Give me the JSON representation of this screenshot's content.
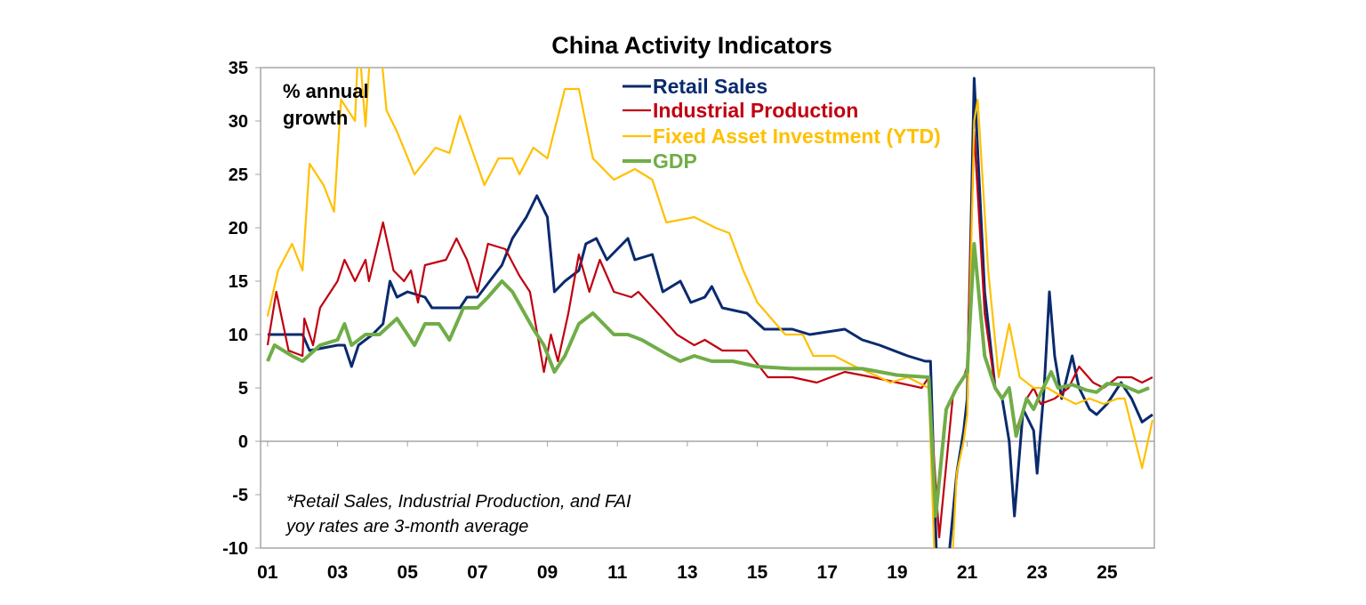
{
  "chart_data": {
    "type": "line",
    "title": "China Activity Indicators",
    "ylabel": "% annual growth",
    "ylim": [
      -10,
      35
    ],
    "xlim": [
      2000.8,
      2026.35
    ],
    "yticks": [
      -10,
      -5,
      0,
      5,
      10,
      15,
      20,
      25,
      30,
      35
    ],
    "xtick_labels": [
      "01",
      "03",
      "05",
      "07",
      "09",
      "11",
      "13",
      "15",
      "17",
      "19",
      "21",
      "23",
      "25"
    ],
    "xtick_years": [
      2001,
      2003,
      2005,
      2007,
      2009,
      2011,
      2013,
      2015,
      2017,
      2019,
      2021,
      2023,
      2025
    ],
    "grid": false,
    "legend_placement": "top-center",
    "footnote": [
      "*Retail Sales, Industrial Production, and FAI",
      "yoy rates are 3-month average"
    ],
    "series": [
      {
        "name": "Retail Sales",
        "color": "#0a2a6e",
        "width": 3,
        "points": [
          [
            2001.0,
            10
          ],
          [
            2001.5,
            10
          ],
          [
            2002.0,
            10
          ],
          [
            2002.2,
            8.5
          ],
          [
            2003.0,
            9
          ],
          [
            2003.2,
            9
          ],
          [
            2003.4,
            7
          ],
          [
            2003.6,
            9
          ],
          [
            2004.0,
            10
          ],
          [
            2004.3,
            11
          ],
          [
            2004.5,
            15
          ],
          [
            2004.7,
            13.5
          ],
          [
            2005.0,
            14
          ],
          [
            2005.5,
            13.5
          ],
          [
            2005.7,
            12.5
          ],
          [
            2006.5,
            12.5
          ],
          [
            2006.7,
            13.5
          ],
          [
            2007.0,
            13.5
          ],
          [
            2007.7,
            16.5
          ],
          [
            2008.0,
            19
          ],
          [
            2008.4,
            21
          ],
          [
            2008.7,
            23
          ],
          [
            2009.0,
            21
          ],
          [
            2009.2,
            14
          ],
          [
            2009.5,
            15
          ],
          [
            2009.9,
            16
          ],
          [
            2010.1,
            18.5
          ],
          [
            2010.4,
            19
          ],
          [
            2010.7,
            17
          ],
          [
            2011.0,
            18
          ],
          [
            2011.3,
            19
          ],
          [
            2011.5,
            17
          ],
          [
            2012.0,
            17.5
          ],
          [
            2012.3,
            14
          ],
          [
            2012.8,
            15
          ],
          [
            2013.1,
            13
          ],
          [
            2013.5,
            13.5
          ],
          [
            2013.7,
            14.5
          ],
          [
            2014.0,
            12.5
          ],
          [
            2014.7,
            12
          ],
          [
            2015.2,
            10.5
          ],
          [
            2016.0,
            10.5
          ],
          [
            2016.5,
            10
          ],
          [
            2017.5,
            10.5
          ],
          [
            2018.0,
            9.5
          ],
          [
            2018.5,
            9
          ],
          [
            2019.3,
            8
          ],
          [
            2019.8,
            7.5
          ],
          [
            2019.95,
            7.5
          ],
          [
            2020.2,
            -19
          ],
          [
            2020.5,
            -10
          ],
          [
            2020.7,
            -3
          ],
          [
            2020.9,
            1
          ],
          [
            2021.0,
            4
          ],
          [
            2021.2,
            34
          ],
          [
            2021.5,
            14
          ],
          [
            2021.8,
            5
          ],
          [
            2022.0,
            4
          ],
          [
            2022.2,
            0
          ],
          [
            2022.35,
            -7
          ],
          [
            2022.6,
            3
          ],
          [
            2022.9,
            1
          ],
          [
            2023.0,
            -3
          ],
          [
            2023.2,
            5
          ],
          [
            2023.35,
            14
          ],
          [
            2023.5,
            8
          ],
          [
            2023.7,
            4
          ],
          [
            2024.0,
            8
          ],
          [
            2024.2,
            5
          ],
          [
            2024.5,
            3
          ],
          [
            2024.7,
            2.5
          ],
          [
            2025.0,
            3.5
          ],
          [
            2025.4,
            5.5
          ],
          [
            2025.7,
            4
          ],
          [
            2026.0,
            1.8
          ],
          [
            2026.3,
            2.5
          ]
        ]
      },
      {
        "name": "Industrial Production",
        "color": "#c00010",
        "width": 2.2,
        "points": [
          [
            2001.0,
            9
          ],
          [
            2001.25,
            14
          ],
          [
            2001.6,
            8.5
          ],
          [
            2002.0,
            8
          ],
          [
            2002.05,
            11.5
          ],
          [
            2002.3,
            9
          ],
          [
            2002.5,
            12.5
          ],
          [
            2003.0,
            15
          ],
          [
            2003.2,
            17
          ],
          [
            2003.5,
            15
          ],
          [
            2003.8,
            17
          ],
          [
            2003.9,
            15
          ],
          [
            2004.3,
            20.5
          ],
          [
            2004.6,
            16
          ],
          [
            2004.9,
            15
          ],
          [
            2005.1,
            16
          ],
          [
            2005.3,
            13
          ],
          [
            2005.5,
            16.5
          ],
          [
            2006.1,
            17
          ],
          [
            2006.4,
            19
          ],
          [
            2006.7,
            17
          ],
          [
            2007.0,
            14
          ],
          [
            2007.3,
            18.5
          ],
          [
            2007.8,
            18
          ],
          [
            2008.2,
            15.5
          ],
          [
            2008.5,
            14
          ],
          [
            2008.9,
            6.5
          ],
          [
            2009.1,
            10
          ],
          [
            2009.3,
            7.5
          ],
          [
            2009.6,
            12
          ],
          [
            2009.9,
            17.5
          ],
          [
            2010.2,
            14
          ],
          [
            2010.5,
            17
          ],
          [
            2010.9,
            14
          ],
          [
            2011.4,
            13.5
          ],
          [
            2011.6,
            14
          ],
          [
            2012.3,
            11.5
          ],
          [
            2012.7,
            10
          ],
          [
            2013.2,
            9
          ],
          [
            2013.5,
            9.5
          ],
          [
            2014.0,
            8.5
          ],
          [
            2014.7,
            8.5
          ],
          [
            2015.3,
            6
          ],
          [
            2016.0,
            6
          ],
          [
            2016.7,
            5.5
          ],
          [
            2017.5,
            6.5
          ],
          [
            2018.3,
            6
          ],
          [
            2019.0,
            5.5
          ],
          [
            2019.7,
            5
          ],
          [
            2019.9,
            6
          ],
          [
            2020.2,
            -9
          ],
          [
            2020.6,
            4.5
          ],
          [
            2020.9,
            6
          ],
          [
            2021.0,
            7
          ],
          [
            2021.2,
            29
          ],
          [
            2021.5,
            12
          ],
          [
            2021.8,
            5
          ],
          [
            2022.0,
            4
          ],
          [
            2022.2,
            5
          ],
          [
            2022.4,
            1
          ],
          [
            2022.7,
            4
          ],
          [
            2022.9,
            5
          ],
          [
            2023.1,
            3.5
          ],
          [
            2023.5,
            4
          ],
          [
            2023.9,
            5
          ],
          [
            2024.2,
            7
          ],
          [
            2024.6,
            5.5
          ],
          [
            2024.9,
            5
          ],
          [
            2025.3,
            6
          ],
          [
            2025.7,
            6
          ],
          [
            2026.0,
            5.5
          ],
          [
            2026.3,
            6
          ]
        ]
      },
      {
        "name": "Fixed Asset Investment (YTD)",
        "color": "#ffc000",
        "width": 2.2,
        "points": [
          [
            2001.0,
            11.7
          ],
          [
            2001.3,
            16
          ],
          [
            2001.7,
            18.5
          ],
          [
            2002.0,
            16
          ],
          [
            2002.2,
            26
          ],
          [
            2002.6,
            24
          ],
          [
            2002.9,
            21.5
          ],
          [
            2003.1,
            32
          ],
          [
            2003.5,
            30
          ],
          [
            2003.6,
            38
          ],
          [
            2003.8,
            29.5
          ],
          [
            2004.0,
            40
          ],
          [
            2004.2,
            38
          ],
          [
            2004.4,
            31
          ],
          [
            2004.7,
            29
          ],
          [
            2005.2,
            25
          ],
          [
            2005.8,
            27.5
          ],
          [
            2006.2,
            27
          ],
          [
            2006.5,
            30.5
          ],
          [
            2007.2,
            24
          ],
          [
            2007.6,
            26.5
          ],
          [
            2008.0,
            26.5
          ],
          [
            2008.2,
            25
          ],
          [
            2008.6,
            27.5
          ],
          [
            2009.0,
            26.5
          ],
          [
            2009.5,
            33
          ],
          [
            2009.9,
            33
          ],
          [
            2010.3,
            26.5
          ],
          [
            2010.9,
            24.5
          ],
          [
            2011.5,
            25.5
          ],
          [
            2012.0,
            24.5
          ],
          [
            2012.4,
            20.5
          ],
          [
            2013.2,
            21
          ],
          [
            2013.8,
            20
          ],
          [
            2014.2,
            19.5
          ],
          [
            2014.6,
            16
          ],
          [
            2015.0,
            13
          ],
          [
            2015.8,
            10
          ],
          [
            2016.3,
            10
          ],
          [
            2016.6,
            8
          ],
          [
            2017.2,
            8
          ],
          [
            2017.8,
            7
          ],
          [
            2018.5,
            6
          ],
          [
            2018.8,
            5.5
          ],
          [
            2019.3,
            6
          ],
          [
            2019.9,
            5
          ],
          [
            2020.2,
            -24
          ],
          [
            2020.5,
            -16
          ],
          [
            2020.7,
            -3
          ],
          [
            2020.9,
            0
          ],
          [
            2021.0,
            2.5
          ],
          [
            2021.2,
            30
          ],
          [
            2021.3,
            32
          ],
          [
            2021.6,
            16
          ],
          [
            2021.9,
            6
          ],
          [
            2022.2,
            11
          ],
          [
            2022.5,
            6
          ],
          [
            2022.9,
            5
          ],
          [
            2023.3,
            5
          ],
          [
            2023.8,
            4
          ],
          [
            2024.1,
            3.5
          ],
          [
            2024.5,
            4
          ],
          [
            2024.9,
            3.5
          ],
          [
            2025.3,
            4
          ],
          [
            2025.5,
            4
          ],
          [
            2026.0,
            -2.5
          ],
          [
            2026.3,
            2
          ]
        ]
      },
      {
        "name": "GDP",
        "color": "#70ad47",
        "width": 4,
        "points": [
          [
            2001.0,
            7.5
          ],
          [
            2001.2,
            9
          ],
          [
            2001.7,
            8
          ],
          [
            2002.0,
            7.5
          ],
          [
            2002.5,
            9
          ],
          [
            2003.0,
            9.5
          ],
          [
            2003.2,
            11
          ],
          [
            2003.4,
            9
          ],
          [
            2003.8,
            10
          ],
          [
            2004.2,
            10
          ],
          [
            2004.7,
            11.5
          ],
          [
            2005.2,
            9
          ],
          [
            2005.5,
            11
          ],
          [
            2005.9,
            11
          ],
          [
            2006.2,
            9.5
          ],
          [
            2006.6,
            12.5
          ],
          [
            2007.0,
            12.5
          ],
          [
            2007.3,
            13.5
          ],
          [
            2007.7,
            15
          ],
          [
            2008.0,
            14
          ],
          [
            2008.6,
            10.5
          ],
          [
            2008.9,
            9
          ],
          [
            2009.2,
            6.5
          ],
          [
            2009.5,
            8
          ],
          [
            2009.9,
            11
          ],
          [
            2010.3,
            12
          ],
          [
            2010.9,
            10
          ],
          [
            2011.3,
            10
          ],
          [
            2011.7,
            9.5
          ],
          [
            2012.5,
            8
          ],
          [
            2012.8,
            7.5
          ],
          [
            2013.2,
            8
          ],
          [
            2013.7,
            7.5
          ],
          [
            2014.3,
            7.5
          ],
          [
            2015.0,
            7
          ],
          [
            2016.0,
            6.8
          ],
          [
            2017.0,
            6.8
          ],
          [
            2018.0,
            6.8
          ],
          [
            2019.0,
            6.2
          ],
          [
            2019.9,
            6
          ],
          [
            2020.1,
            -7
          ],
          [
            2020.4,
            3
          ],
          [
            2020.7,
            5
          ],
          [
            2021.0,
            6.5
          ],
          [
            2021.2,
            18.5
          ],
          [
            2021.5,
            8
          ],
          [
            2021.8,
            5
          ],
          [
            2022.0,
            4
          ],
          [
            2022.2,
            5
          ],
          [
            2022.4,
            0.5
          ],
          [
            2022.7,
            4
          ],
          [
            2022.9,
            3
          ],
          [
            2023.1,
            4.5
          ],
          [
            2023.4,
            6.5
          ],
          [
            2023.6,
            5
          ],
          [
            2024.0,
            5.3
          ],
          [
            2024.4,
            4.8
          ],
          [
            2024.7,
            4.6
          ],
          [
            2025.0,
            5.4
          ],
          [
            2025.4,
            5.3
          ],
          [
            2025.9,
            4.6
          ],
          [
            2026.2,
            5
          ]
        ]
      }
    ]
  }
}
